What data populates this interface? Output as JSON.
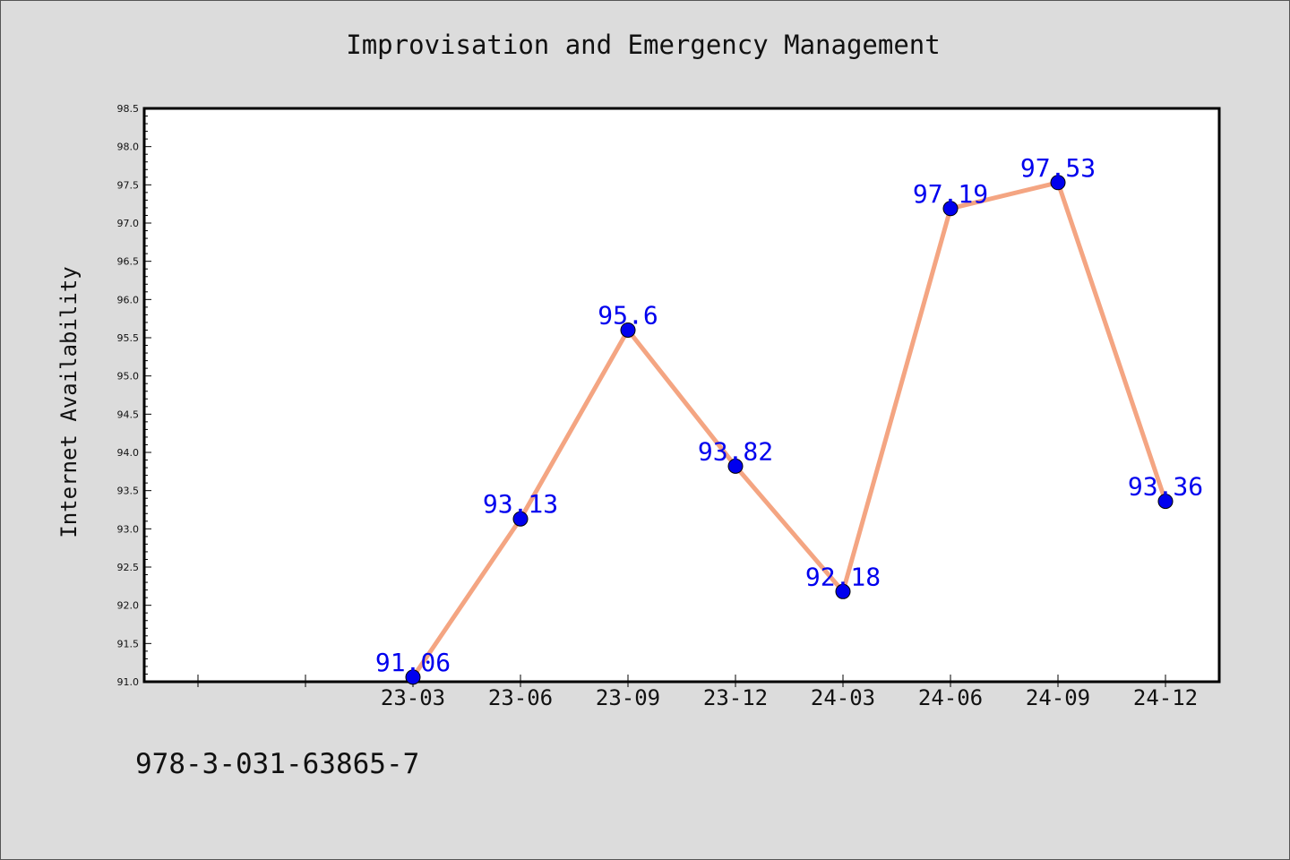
{
  "chart_data": {
    "type": "line",
    "title": "Improvisation and Emergency Management",
    "ylabel": "Internet Availability",
    "xlabel": "",
    "categories": [
      "23-03",
      "23-06",
      "23-09",
      "23-12",
      "24-03",
      "24-06",
      "24-09",
      "24-12"
    ],
    "series": [
      {
        "values": [
          91.06,
          93.13,
          95.6,
          93.82,
          92.18,
          97.19,
          97.53,
          93.36
        ]
      }
    ],
    "data_labels": [
      "91.06",
      "93.13",
      "95.6",
      "93.82",
      "92.18",
      "97.19",
      "97.53",
      "93.36"
    ],
    "ylim": [
      91.0,
      98.5
    ],
    "yticks": [
      "91.0",
      "91.5",
      "92.0",
      "92.5",
      "93.0",
      "93.5",
      "94.0",
      "94.5",
      "95.0",
      "95.5",
      "96.0",
      "96.5",
      "97.0",
      "97.5",
      "98.0",
      "98.5"
    ],
    "grid": false,
    "colors": {
      "line": "#f4a582",
      "marker": "#0000ee",
      "label": "#0000ee",
      "plot_background": "#ffffff",
      "figure_background": "#dcdcdc"
    }
  },
  "footer": {
    "code": "978-3-031-63865-7"
  }
}
